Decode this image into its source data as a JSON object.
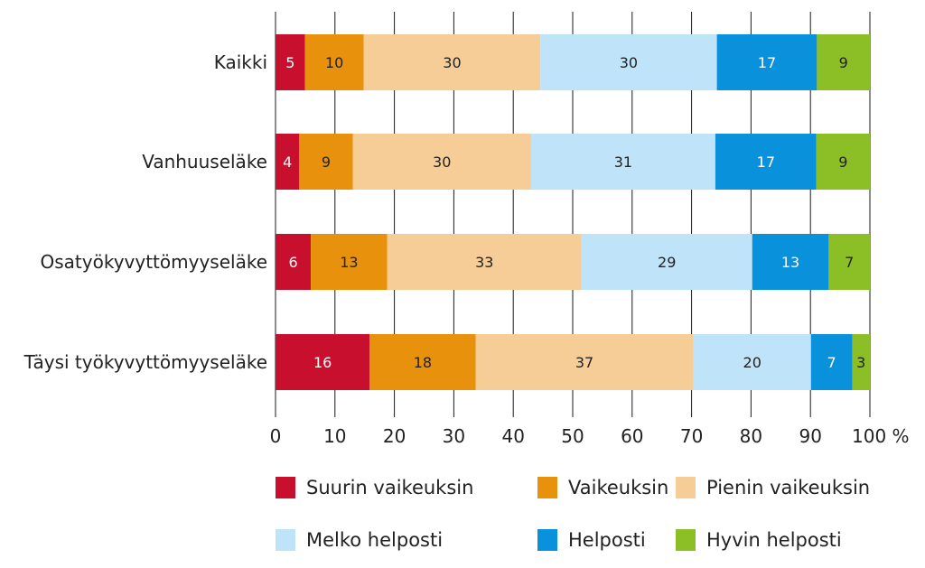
{
  "chart_data": {
    "type": "bar",
    "orientation": "horizontal",
    "stacked": true,
    "categories": [
      "Kaikki",
      "Vanhuuseläke",
      "Osatyökyvyttömyyseläke",
      "Täysi työkyvyttömyyseläke"
    ],
    "series": [
      {
        "name": "Suurin vaikeuksin",
        "color": "#c8102e",
        "values": [
          5,
          4,
          6,
          16
        ]
      },
      {
        "name": "Vaikeuksin",
        "color": "#e8910c",
        "values": [
          10,
          9,
          13,
          18
        ]
      },
      {
        "name": "Pienin vaikeuksin",
        "color": "#f6cd96",
        "values": [
          30,
          30,
          33,
          37
        ]
      },
      {
        "name": "Melko helposti",
        "color": "#bfe3f8",
        "values": [
          30,
          31,
          29,
          20
        ]
      },
      {
        "name": "Helposti",
        "color": "#0a91dc",
        "values": [
          17,
          17,
          13,
          7
        ]
      },
      {
        "name": "Hyvin helposti",
        "color": "#8cbf26",
        "values": [
          9,
          9,
          7,
          3
        ]
      }
    ],
    "xlim": [
      0,
      100
    ],
    "x_ticks": [
      "0",
      "10",
      "20",
      "30",
      "40",
      "50",
      "60",
      "70",
      "80",
      "90",
      "100 %"
    ],
    "grid": true,
    "legend_position": "bottom"
  }
}
